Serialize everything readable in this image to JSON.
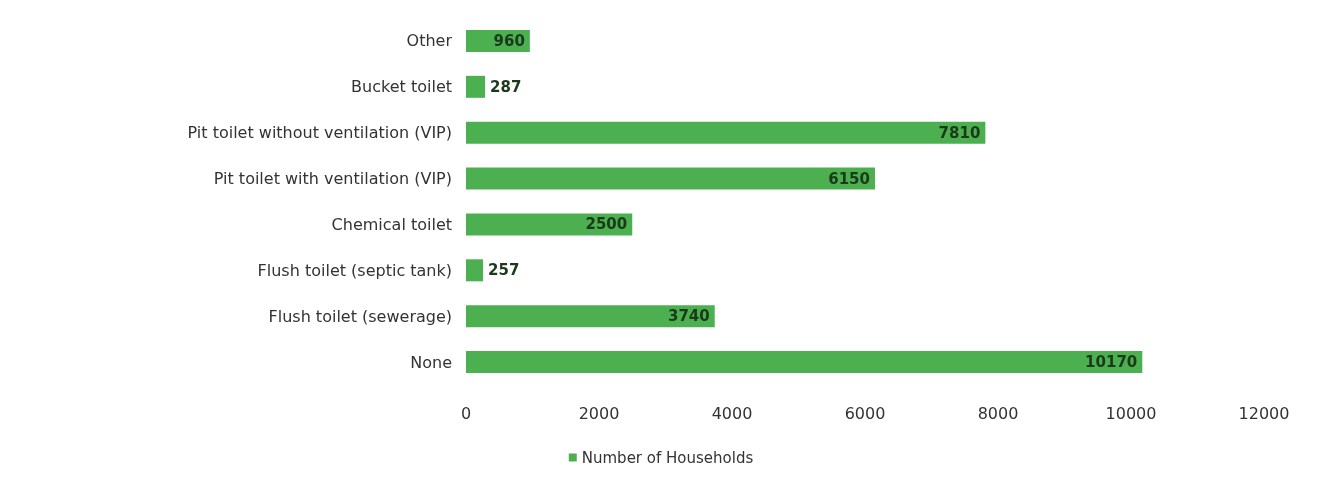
{
  "chart_data": {
    "type": "bar",
    "orientation": "horizontal",
    "categories": [
      "Other",
      "Bucket toilet",
      "Pit toilet without ventilation (VIP)",
      "Pit toilet with ventilation (VIP)",
      "Chemical toilet",
      "Flush toilet (septic tank)",
      "Flush toilet (sewerage)",
      "None"
    ],
    "series": [
      {
        "name": "Number of Households",
        "color": "#4caf50",
        "values": [
          960,
          287,
          7810,
          6150,
          2500,
          257,
          3740,
          10170
        ]
      }
    ],
    "xlim": [
      0,
      12000
    ],
    "xticks": [
      0,
      2000,
      4000,
      6000,
      8000,
      10000,
      12000
    ],
    "grid": false,
    "legend": "bottom",
    "data_labels": true
  }
}
